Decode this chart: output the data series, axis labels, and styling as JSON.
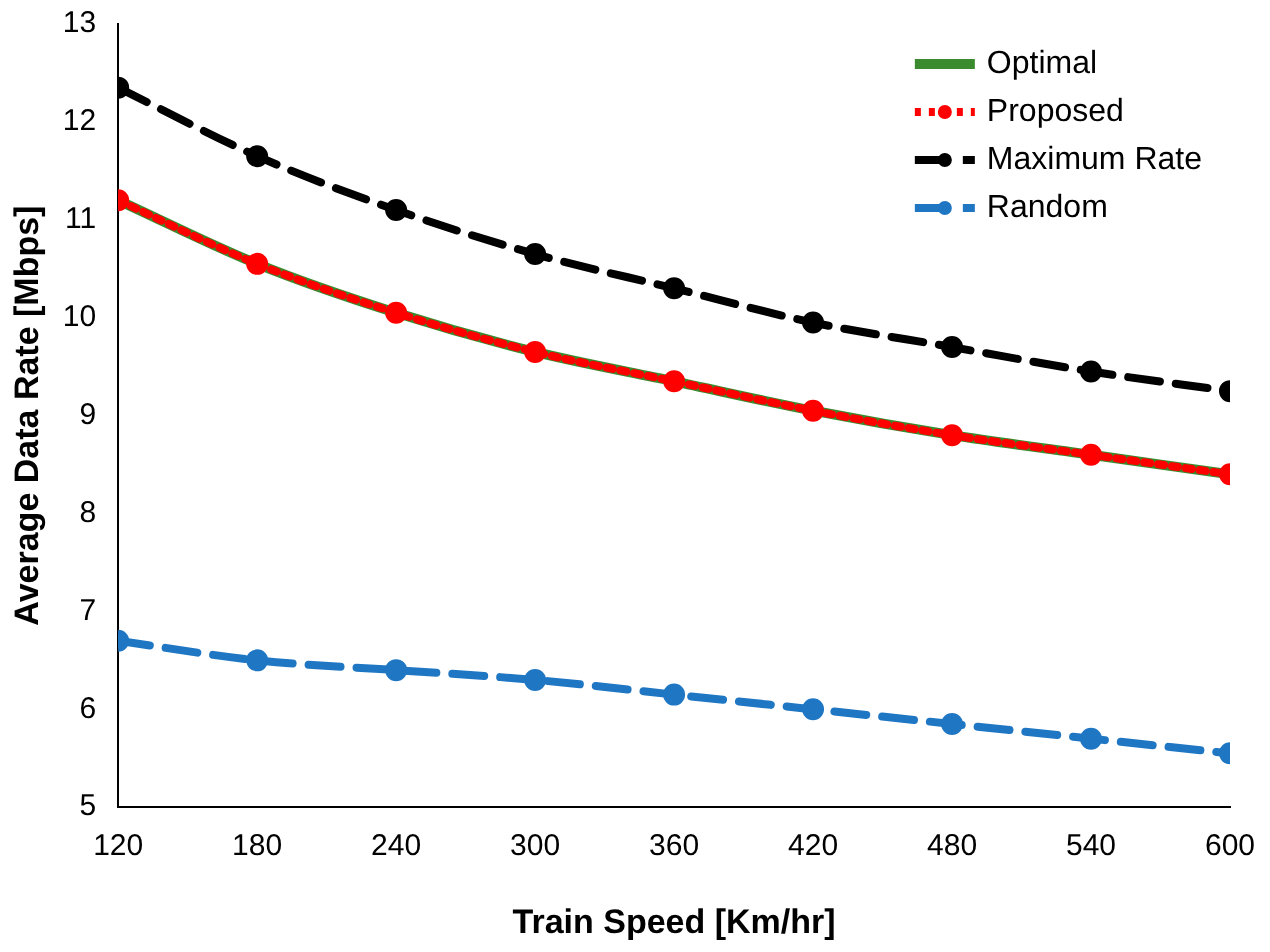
{
  "chart_data": {
    "type": "line",
    "xlabel": "Train Speed [Km/hr]",
    "ylabel": "Average Data Rate [Mbps]",
    "x": [
      120,
      180,
      240,
      300,
      360,
      420,
      480,
      540,
      600
    ],
    "xlim": [
      120,
      600
    ],
    "xticks": [
      120,
      180,
      240,
      300,
      360,
      420,
      480,
      540,
      600
    ],
    "ylim": [
      5,
      13
    ],
    "yticks": [
      5,
      6,
      7,
      8,
      9,
      10,
      11,
      12,
      13
    ],
    "grid": false,
    "legend": "top right",
    "series": [
      {
        "name": "Optimal",
        "color": "#3a8a2e",
        "line_style": "solid",
        "marker": "none",
        "values": [
          11.2,
          10.55,
          10.05,
          9.65,
          9.35,
          9.05,
          8.8,
          8.6,
          8.4
        ]
      },
      {
        "name": "Proposed",
        "color": "#ff0000",
        "line_style": "dotted",
        "marker": "circle",
        "values": [
          11.2,
          10.55,
          10.05,
          9.65,
          9.35,
          9.05,
          8.8,
          8.6,
          8.4
        ]
      },
      {
        "name": "Maximum Rate",
        "color": "#000000",
        "line_style": "dashed",
        "marker": "circle",
        "values": [
          12.35,
          11.65,
          11.1,
          10.65,
          10.3,
          9.95,
          9.7,
          9.45,
          9.25
        ]
      },
      {
        "name": "Random",
        "color": "#1f77c4",
        "line_style": "dashed",
        "marker": "circle",
        "values": [
          6.7,
          6.5,
          6.4,
          6.3,
          6.15,
          6.0,
          5.85,
          5.7,
          5.55
        ]
      }
    ]
  }
}
